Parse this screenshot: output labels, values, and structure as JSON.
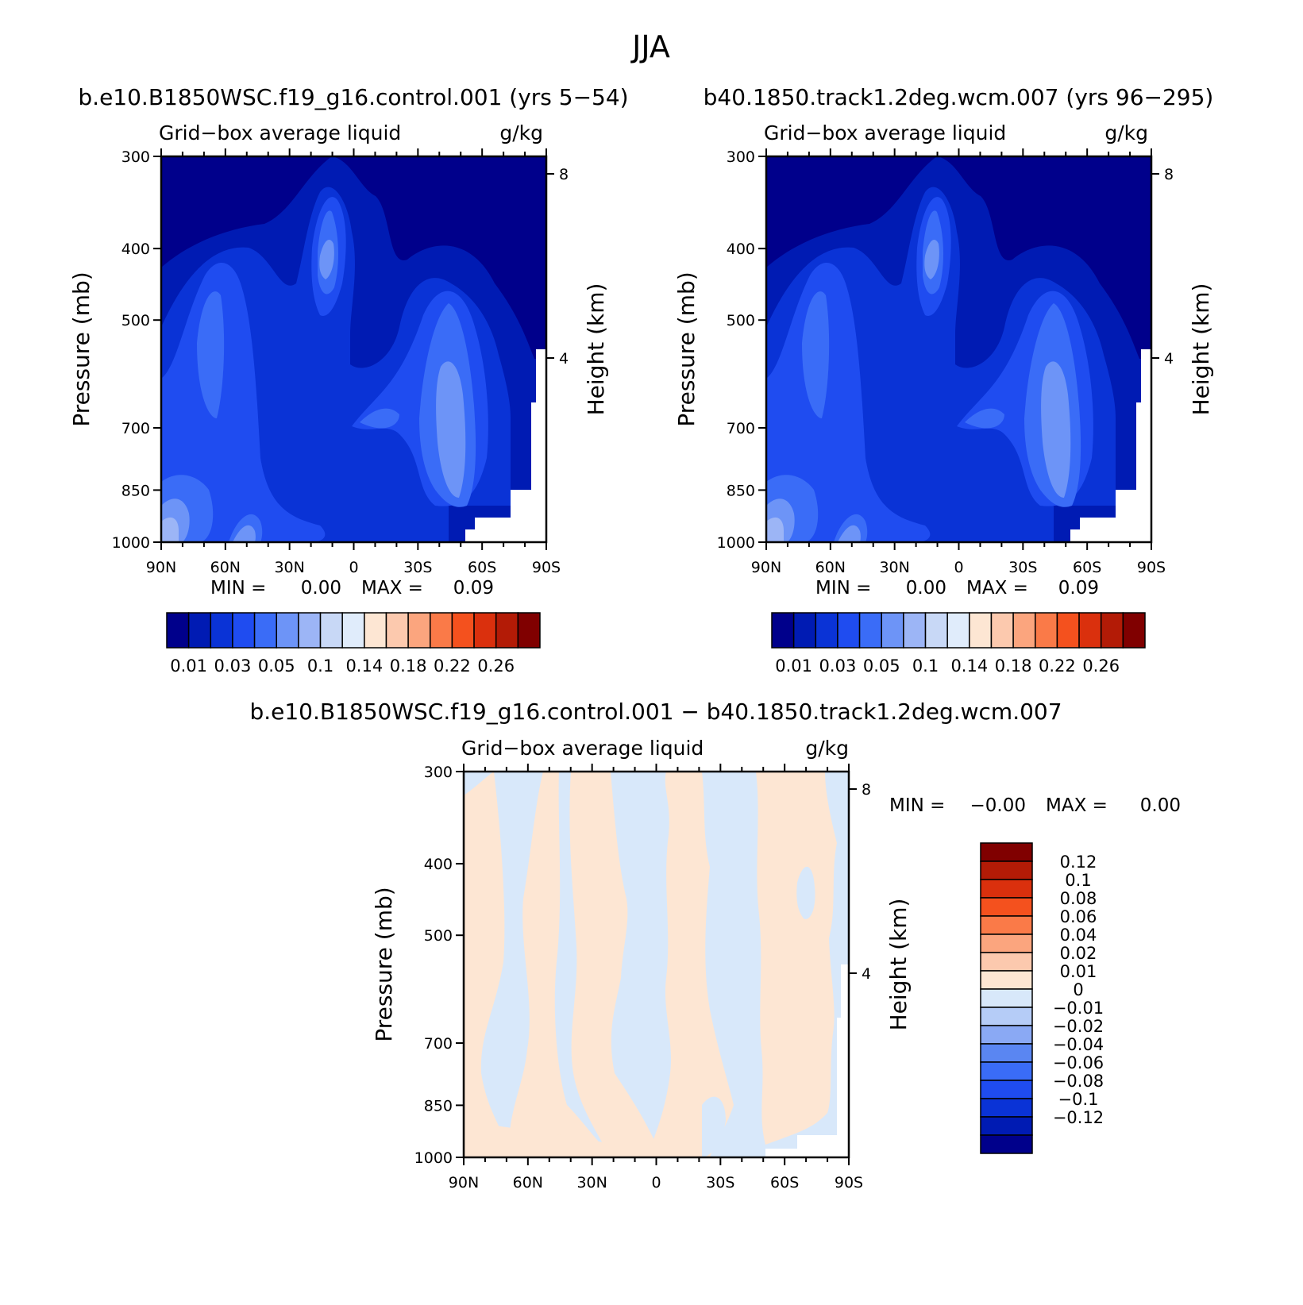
{
  "figure": {
    "title": "JJA",
    "panels": [
      {
        "id": "left",
        "title": "b.e10.B1850WSC.f19_g16.control.001 (yrs 5−54)",
        "subtitle_left": "Grid−box average liquid",
        "subtitle_right": "g/kg",
        "stats": {
          "min_label": "MIN =",
          "min_value": "0.00",
          "max_label": "MAX =",
          "max_value": "0.09"
        }
      },
      {
        "id": "right",
        "title": "b40.1850.track1.2deg.wcm.007 (yrs 96−295)",
        "subtitle_left": "Grid−box average liquid",
        "subtitle_right": "g/kg",
        "stats": {
          "min_label": "MIN =",
          "min_value": "0.00",
          "max_label": "MAX =",
          "max_value": "0.09"
        }
      },
      {
        "id": "diff",
        "title": "b.e10.B1850WSC.f19_g16.control.001 − b40.1850.track1.2deg.wcm.007",
        "subtitle_left": "Grid−box average liquid",
        "subtitle_right": "g/kg",
        "stats": {
          "min_label": "MIN =",
          "min_value": "−0.00",
          "max_label": "MAX =",
          "max_value": "0.00"
        }
      }
    ]
  },
  "axes": {
    "ylabel": "Pressure (mb)",
    "ylabel_right": "Height (km)",
    "pressure_ticks": [
      "300",
      "400",
      "500",
      "700",
      "850",
      "1000"
    ],
    "height_ticks": [
      "8",
      "4"
    ],
    "lat_ticks": [
      "90N",
      "60N",
      "30N",
      "0",
      "30S",
      "60S",
      "90S"
    ]
  },
  "colorbar_main": {
    "colors": [
      "#00008b",
      "#001bb3",
      "#0a33d6",
      "#1f4cf0",
      "#3a6cf7",
      "#6d94f7",
      "#9cb5f6",
      "#c8d8f6",
      "#e0ecfb",
      "#fde6d3",
      "#fcc9ae",
      "#fba57e",
      "#fa7a48",
      "#f4511e",
      "#da300d",
      "#b31b06",
      "#800000"
    ],
    "labels": [
      "0.01",
      "0.03",
      "0.05",
      "0.1",
      "0.14",
      "0.18",
      "0.22",
      "0.26"
    ]
  },
  "colorbar_diff": {
    "colors": [
      "#800000",
      "#b31b06",
      "#da300d",
      "#f4511e",
      "#fa7a48",
      "#fba57e",
      "#fcc9ae",
      "#fde6d3",
      "#d8e8fa",
      "#b5ccf7",
      "#8aa9f4",
      "#5a86f2",
      "#3a6cf7",
      "#1f4cf0",
      "#0a33d6",
      "#001bb3",
      "#00008b"
    ],
    "labels": [
      "0.12",
      "0.1",
      "0.08",
      "0.06",
      "0.04",
      "0.02",
      "0.01",
      "0",
      "−0.01",
      "−0.02",
      "−0.04",
      "−0.06",
      "−0.08",
      "−0.1",
      "−0.12"
    ]
  },
  "chart_data": [
    {
      "type": "heatmap",
      "title": "b.e10.B1850WSC.f19_g16.control.001 (yrs 5−54)",
      "xlabel": "",
      "ylabel": "Pressure (mb)",
      "x_ticks": [
        "90N",
        "60N",
        "30N",
        "0",
        "30S",
        "60S",
        "90S"
      ],
      "y_ticks": [
        "300",
        "400",
        "500",
        "700",
        "850",
        "1000"
      ],
      "ylim": [
        300,
        1000
      ],
      "units": "g/kg",
      "min": 0.0,
      "max": 0.09
    },
    {
      "type": "heatmap",
      "title": "b40.1850.track1.2deg.wcm.007 (yrs 96−295)",
      "xlabel": "",
      "ylabel": "Pressure (mb)",
      "x_ticks": [
        "90N",
        "60N",
        "30N",
        "0",
        "30S",
        "60S",
        "90S"
      ],
      "y_ticks": [
        "300",
        "400",
        "500",
        "700",
        "850",
        "1000"
      ],
      "ylim": [
        300,
        1000
      ],
      "units": "g/kg",
      "min": 0.0,
      "max": 0.09
    },
    {
      "type": "heatmap",
      "title": "b.e10.B1850WSC.f19_g16.control.001 − b40.1850.track1.2deg.wcm.007",
      "xlabel": "",
      "ylabel": "Pressure (mb)",
      "x_ticks": [
        "90N",
        "60N",
        "30N",
        "0",
        "30S",
        "60S",
        "90S"
      ],
      "y_ticks": [
        "300",
        "400",
        "500",
        "700",
        "850",
        "1000"
      ],
      "ylim": [
        300,
        1000
      ],
      "units": "g/kg",
      "min": -0.0,
      "max": 0.0
    }
  ]
}
